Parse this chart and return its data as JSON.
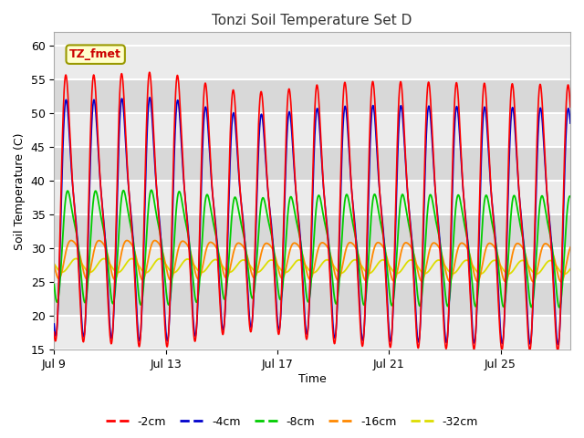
{
  "title": "Tonzi Soil Temperature Set D",
  "xlabel": "Time",
  "ylabel": "Soil Temperature (C)",
  "ylim": [
    15,
    62
  ],
  "n_days": 18.5,
  "x_tick_positions": [
    0,
    4,
    8,
    12,
    16
  ],
  "x_tick_labels": [
    "Jul 9",
    "Jul 13",
    "Jul 17",
    "Jul 21",
    "Jul 25"
  ],
  "y_ticks": [
    15,
    20,
    25,
    30,
    35,
    40,
    45,
    50,
    55,
    60
  ],
  "legend_labels": [
    "-2cm",
    "-4cm",
    "-8cm",
    "-16cm",
    "-32cm"
  ],
  "line_colors": [
    "#ff0000",
    "#0000cc",
    "#00cc00",
    "#ff8800",
    "#dddd00"
  ],
  "annotation_text": "TZ_fmet",
  "plot_bg_light": "#ebebeb",
  "plot_bg_dark": "#d8d8d8",
  "grid_color": "#ffffff"
}
